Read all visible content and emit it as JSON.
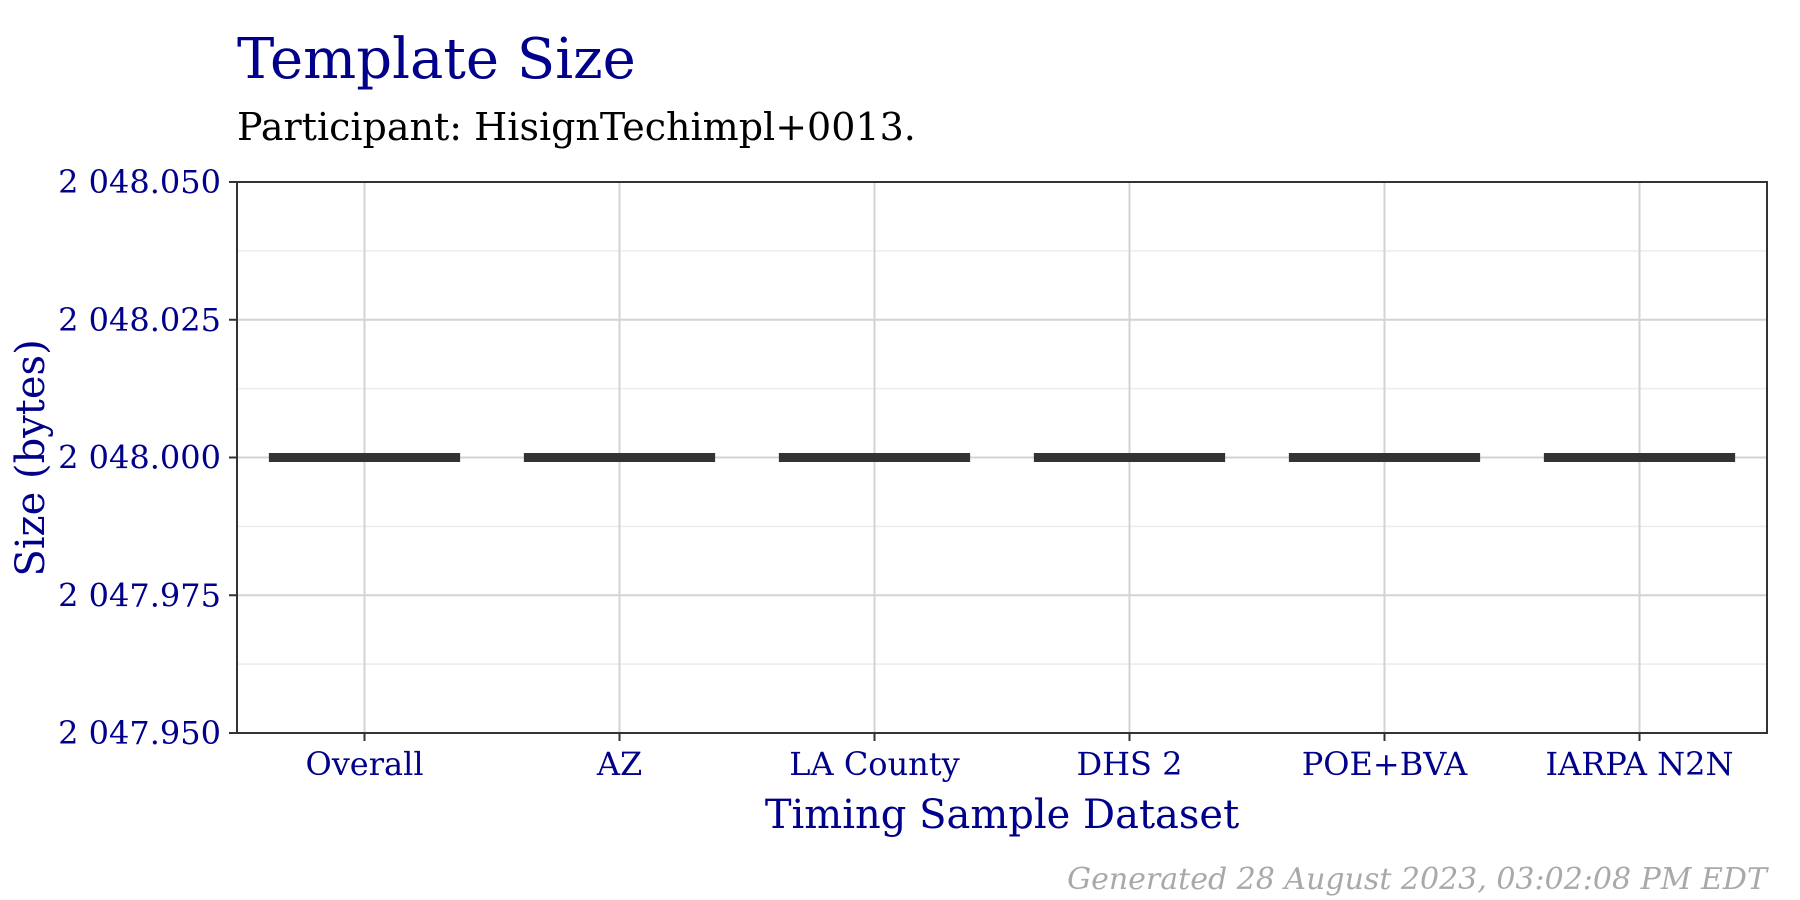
{
  "chart_data": {
    "type": "boxplot",
    "title": "Template Size",
    "subtitle": "Participant: HisignTechimpl+0013.",
    "xlabel": "Timing Sample Dataset",
    "ylabel": "Size (bytes)",
    "categories": [
      "Overall",
      "AZ",
      "LA County",
      "DHS 2",
      "POE+BVA",
      "IARPA N2N"
    ],
    "values": [
      2048,
      2048,
      2048,
      2048,
      2048,
      2048
    ],
    "ylim": [
      2047.95,
      2048.05
    ],
    "yticks": [
      2047.95,
      2047.975,
      2048,
      2048.025,
      2048.05
    ],
    "ytick_labels": [
      "2 047.950",
      "2 047.975",
      "2 048.000",
      "2 048.025",
      "2 048.050"
    ],
    "grid": true,
    "caption": "Generated 28 August 2023, 03:02:08 PM EDT"
  },
  "colors": {
    "title": "#00008B",
    "subtitle": "#000000",
    "axis_text": "#00008B",
    "median_line": "#333333",
    "grid_major": "#D3D3D3",
    "grid_minor": "#EBEBEB",
    "panel_border": "#333333",
    "caption": "#A9A9A9"
  }
}
